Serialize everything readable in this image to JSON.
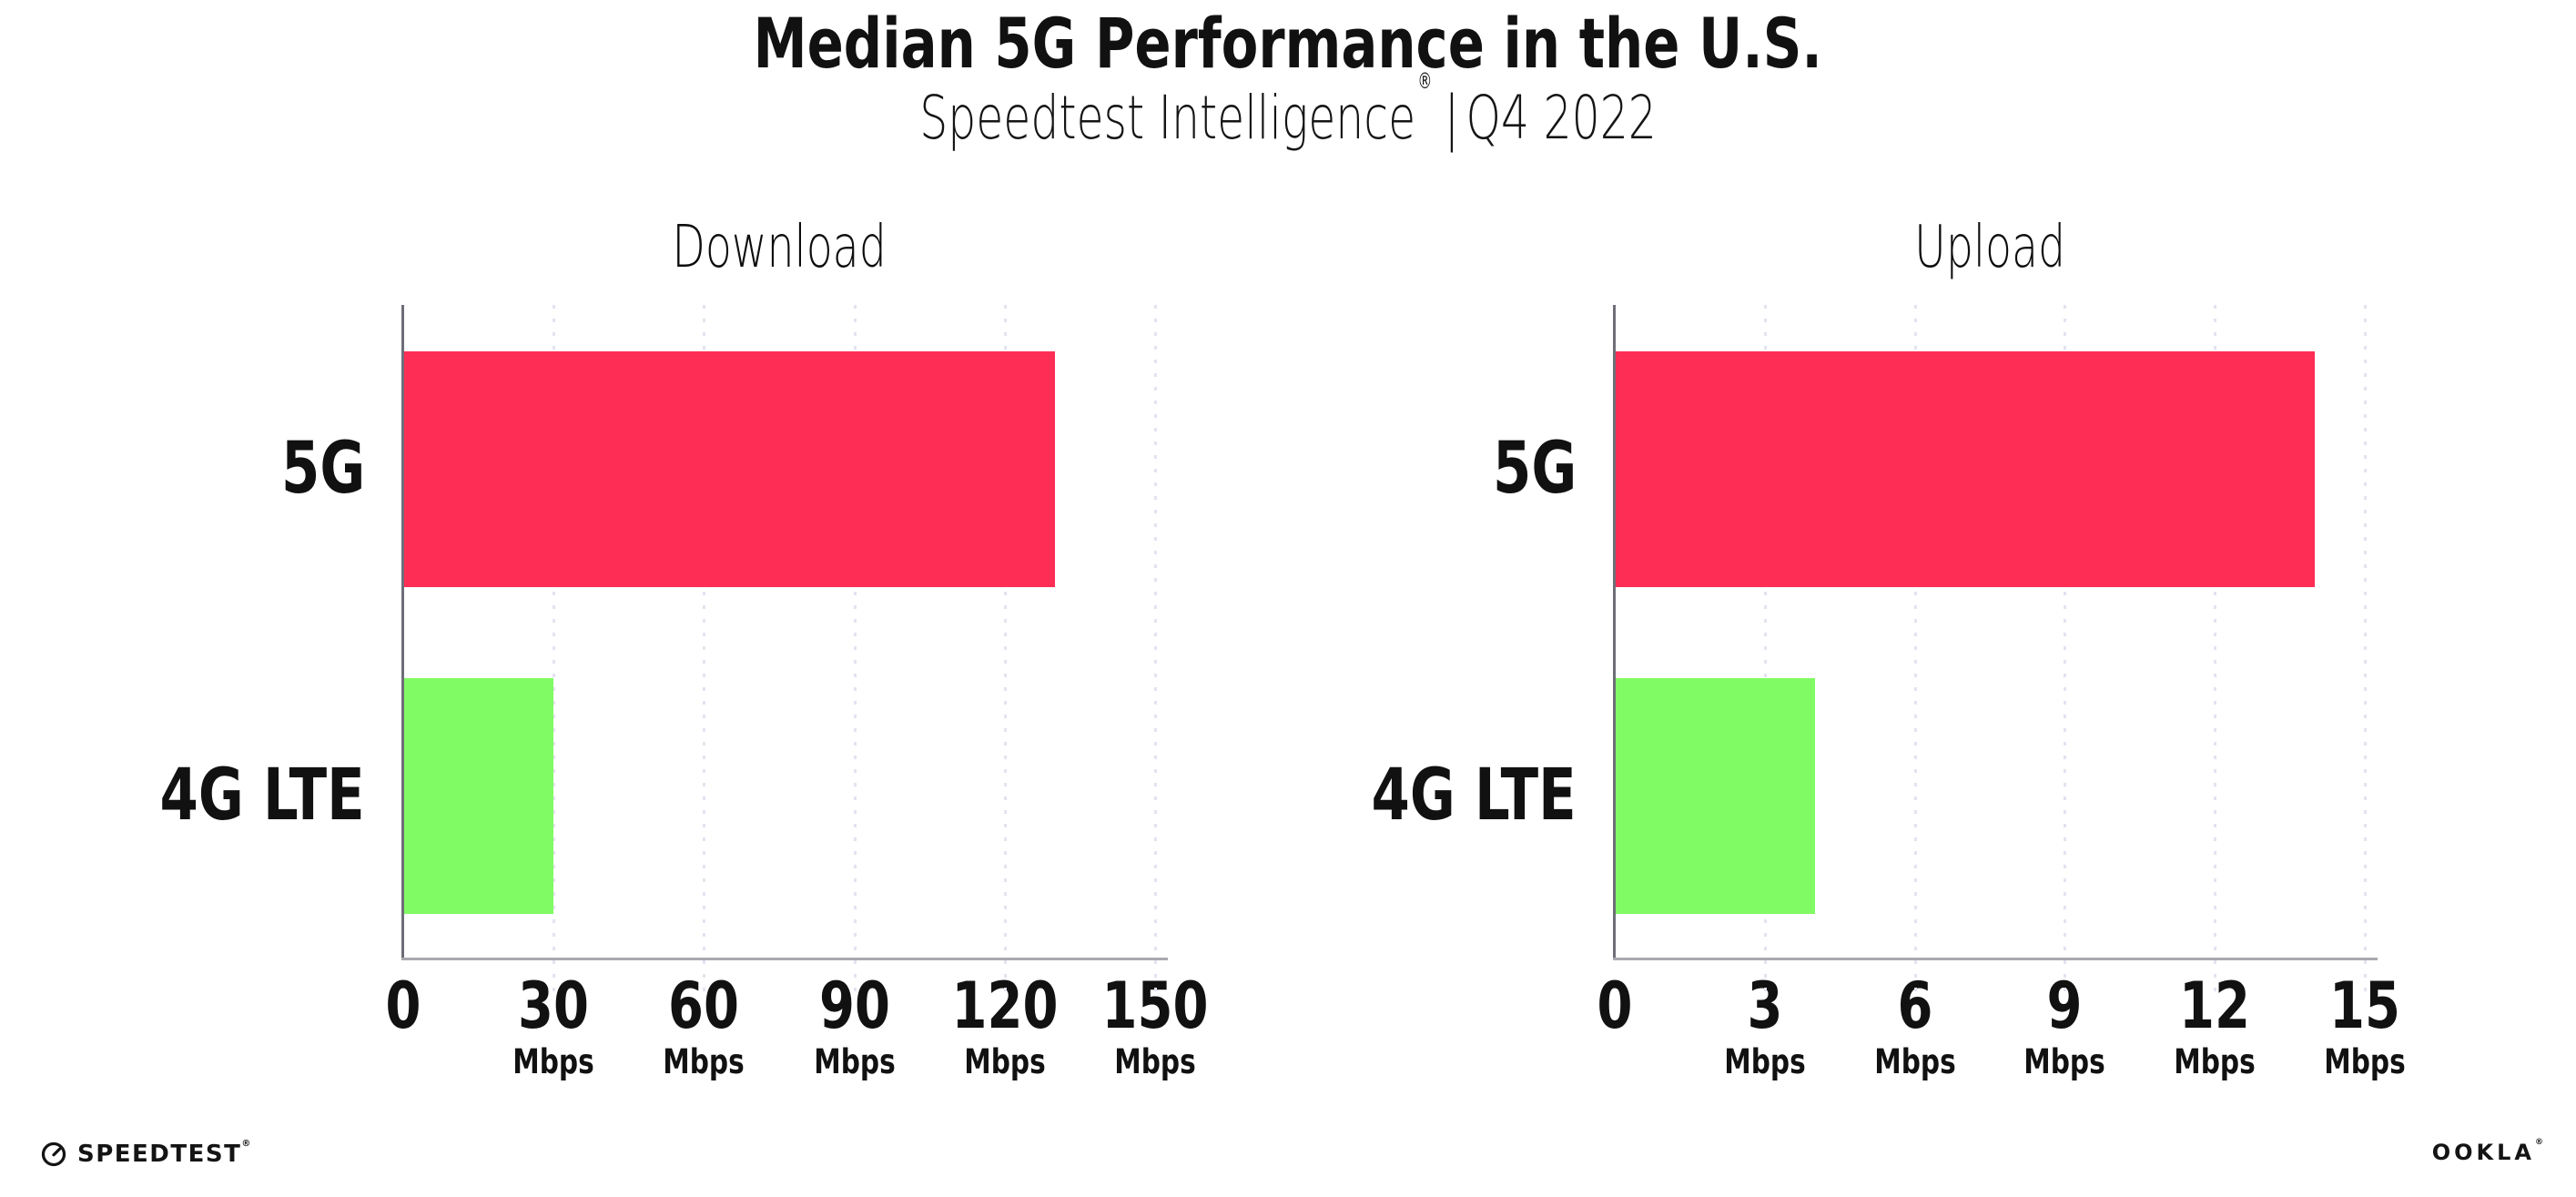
{
  "header": {
    "title": "Median 5G Performance in the U.S.",
    "subtitle": {
      "product": "Speedtest Intelligence",
      "reg_mark": "®",
      "divider": "|",
      "period": "Q4 2022"
    }
  },
  "chart_data": [
    {
      "type": "bar",
      "orientation": "horizontal",
      "title": "Download",
      "categories": [
        "5G",
        "4G LTE"
      ],
      "values": [
        130,
        30
      ],
      "unit": "Mbps",
      "xlim": [
        0,
        150
      ],
      "xticks": [
        0,
        30,
        60,
        90,
        120,
        150
      ],
      "grid": "dotted-vertical",
      "legend": "none",
      "bar_colors": [
        "#FD2D55",
        "#80FB64"
      ]
    },
    {
      "type": "bar",
      "orientation": "horizontal",
      "title": "Upload",
      "categories": [
        "5G",
        "4G LTE"
      ],
      "values": [
        14,
        4
      ],
      "unit": "Mbps",
      "xlim": [
        0,
        15
      ],
      "xticks": [
        0,
        3,
        6,
        9,
        12,
        15
      ],
      "grid": "dotted-vertical",
      "legend": "none",
      "bar_colors": [
        "#FD2D55",
        "#80FB64"
      ]
    }
  ],
  "footer": {
    "speedtest_wordmark": "SPEEDTEST",
    "speedtest_reg_mark": "®",
    "ookla_wordmark": "OOKLA",
    "ookla_reg_mark": "®"
  },
  "colors": {
    "bar_5g": "#FD2D55",
    "bar_4g_lte": "#80FB64",
    "gridline": "#E3E3F1",
    "x_axis_line": "#A9A9B0",
    "y_axis_line": "#6E6E78",
    "text": "#111111",
    "background": "#FFFFFF"
  }
}
